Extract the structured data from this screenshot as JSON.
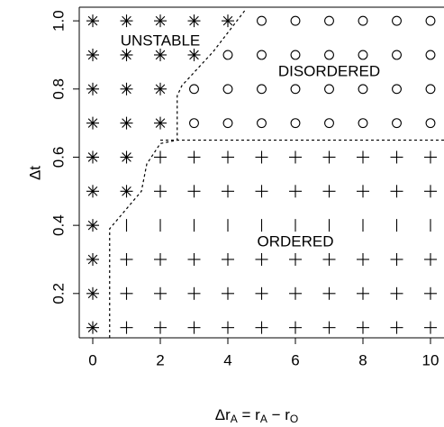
{
  "chart_data": {
    "type": "scatter",
    "xlabel": [
      "Δr",
      "A",
      " = r",
      "A",
      " − r",
      "O"
    ],
    "ylabel": "Δt",
    "xlim": [
      -0.4,
      10.4
    ],
    "ylim": [
      0.07,
      1.04
    ],
    "xticks": [
      0,
      2,
      4,
      6,
      8,
      10
    ],
    "yticks": [
      0.2,
      0.4,
      0.6,
      0.8,
      {
        "value": 1,
        "label": "1.0"
      }
    ],
    "series": [
      {
        "marker": "asterisk",
        "color": "#000000",
        "x": [
          0,
          1,
          2,
          3,
          4,
          0,
          1,
          2,
          3,
          0,
          1,
          2,
          0,
          1,
          2,
          0,
          1,
          0,
          1,
          0,
          0,
          0,
          0
        ],
        "y": [
          1,
          1,
          1,
          1,
          1,
          0.9,
          0.9,
          0.9,
          0.9,
          0.8,
          0.8,
          0.8,
          0.7,
          0.7,
          0.7,
          0.6,
          0.6,
          0.5,
          0.5,
          0.4,
          0.3,
          0.2,
          0.1
        ]
      },
      {
        "marker": "circle",
        "color": "#000000",
        "x": [
          5,
          6,
          7,
          8,
          9,
          10,
          4,
          5,
          6,
          7,
          8,
          9,
          10,
          3,
          4,
          5,
          6,
          7,
          8,
          9,
          10,
          3,
          4,
          5,
          6,
          7,
          8,
          9,
          10
        ],
        "y": [
          1,
          1,
          1,
          1,
          1,
          1,
          0.9,
          0.9,
          0.9,
          0.9,
          0.9,
          0.9,
          0.9,
          0.8,
          0.8,
          0.8,
          0.8,
          0.8,
          0.8,
          0.8,
          0.8,
          0.7,
          0.7,
          0.7,
          0.7,
          0.7,
          0.7,
          0.7,
          0.7
        ]
      },
      {
        "marker": "plus",
        "color": "#000000",
        "x": [
          2,
          3,
          4,
          5,
          6,
          7,
          8,
          9,
          10,
          2,
          3,
          4,
          5,
          6,
          7,
          8,
          9,
          10,
          1,
          2,
          3,
          4,
          5,
          6,
          7,
          8,
          9,
          10,
          1,
          2,
          3,
          4,
          5,
          6,
          7,
          8,
          9,
          10,
          1,
          2,
          3,
          4,
          5,
          6,
          7,
          8,
          9,
          10
        ],
        "y": [
          0.6,
          0.6,
          0.6,
          0.6,
          0.6,
          0.6,
          0.6,
          0.6,
          0.6,
          0.5,
          0.5,
          0.5,
          0.5,
          0.5,
          0.5,
          0.5,
          0.5,
          0.5,
          0.3,
          0.3,
          0.3,
          0.3,
          0.3,
          0.3,
          0.3,
          0.3,
          0.3,
          0.3,
          0.2,
          0.2,
          0.2,
          0.2,
          0.2,
          0.2,
          0.2,
          0.2,
          0.2,
          0.2,
          0.1,
          0.1,
          0.1,
          0.1,
          0.1,
          0.1,
          0.1,
          0.1,
          0.1,
          0.1
        ]
      },
      {
        "marker": "bar",
        "color": "#000000",
        "x": [
          1,
          2,
          3,
          4,
          5,
          6,
          7,
          8,
          9,
          10
        ],
        "y": [
          0.4,
          0.4,
          0.4,
          0.4,
          0.4,
          0.4,
          0.4,
          0.4,
          0.4,
          0.4
        ]
      }
    ],
    "boundaries": [
      {
        "x": [
          0.5,
          0.5,
          1.44,
          1.6,
          2.0,
          2.5,
          2.5,
          2.64,
          3.57,
          4.5
        ],
        "y": [
          0.07,
          0.39,
          0.5,
          0.58,
          0.64,
          0.65,
          0.78,
          0.81,
          0.91,
          1.03
        ]
      },
      {
        "x": [
          2.0,
          10.5
        ],
        "y": [
          0.65,
          0.65
        ]
      }
    ],
    "annotations": [
      {
        "text": "UNSTABLE",
        "x": 2.0,
        "y": 0.94
      },
      {
        "text": "DISORDERED",
        "x": 7.0,
        "y": 0.85
      },
      {
        "text": "ORDERED",
        "x": 6.0,
        "y": 0.35
      }
    ]
  }
}
